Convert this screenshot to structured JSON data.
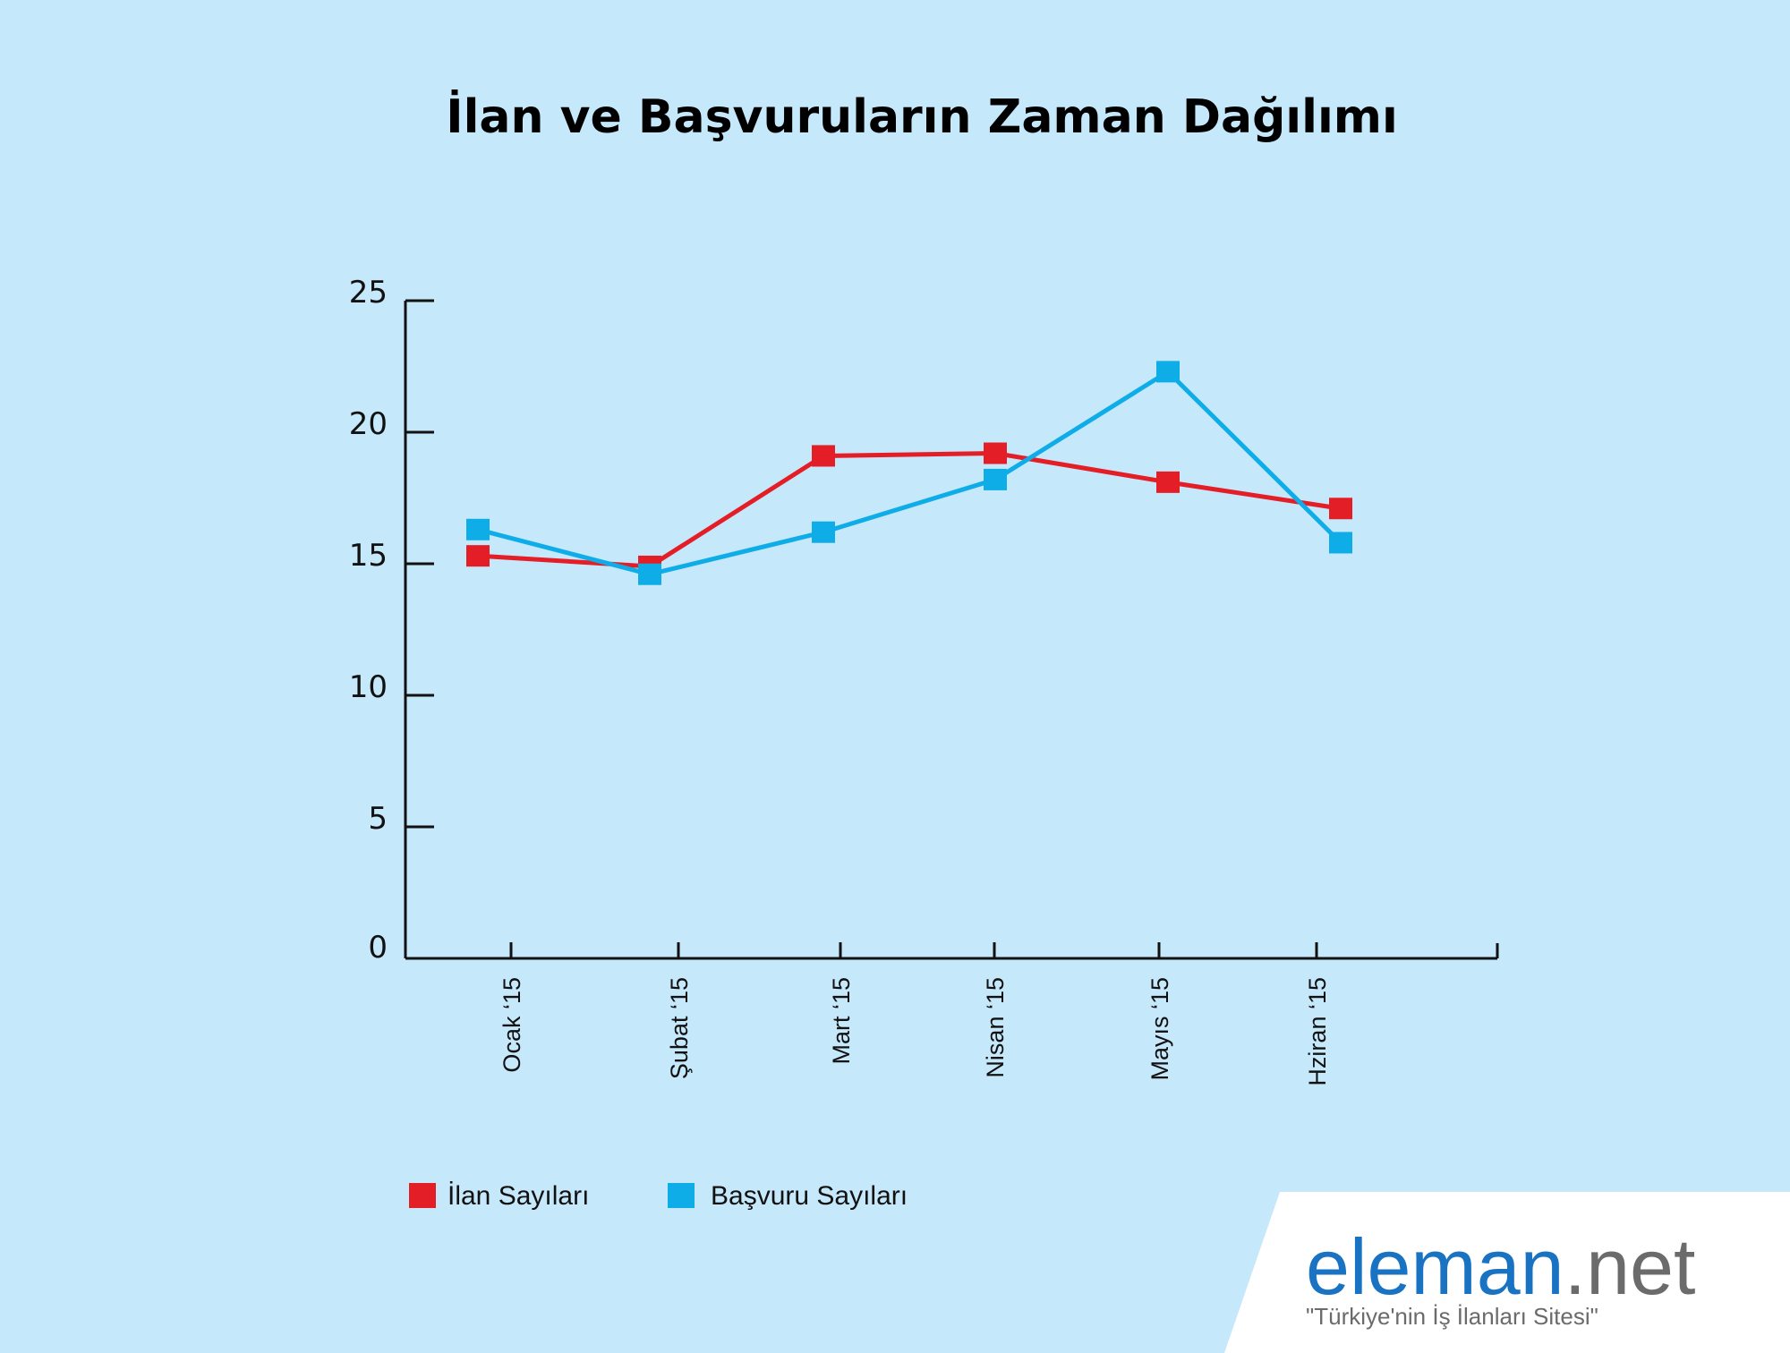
{
  "colors": {
    "background": "#c6e8fb",
    "ilan": "#e41e26",
    "basvuru": "#0fade8",
    "axis": "#111111",
    "logo_blue": "#1a73c2",
    "logo_gray": "#6b6b6b"
  },
  "chart_data": {
    "type": "line",
    "title": "İlan ve Başvuruların Zaman Dağılımı",
    "categories": [
      "Ocak ‘15",
      "Şubat ‘15",
      "Mart ‘15",
      "Nisan ‘15",
      "Mayıs ‘15",
      "Hziran ‘15"
    ],
    "ylim": [
      0,
      25
    ],
    "yticks": [
      0,
      5,
      10,
      15,
      20,
      25
    ],
    "grid": false,
    "legend_position": "bottom-left",
    "series": [
      {
        "name": "İlan Sayıları",
        "color": "#e41e26",
        "values": [
          15.3,
          14.9,
          19.1,
          19.2,
          18.1,
          17.1
        ]
      },
      {
        "name": "Başvuru Sayıları",
        "color": "#0fade8",
        "values": [
          16.3,
          14.6,
          16.2,
          18.2,
          22.3,
          15.8
        ]
      }
    ]
  },
  "logo": {
    "brand_main": "eleman",
    "brand_suffix": ".net",
    "tagline": "\"Türkiye'nin İş İlanları Sitesi\""
  }
}
